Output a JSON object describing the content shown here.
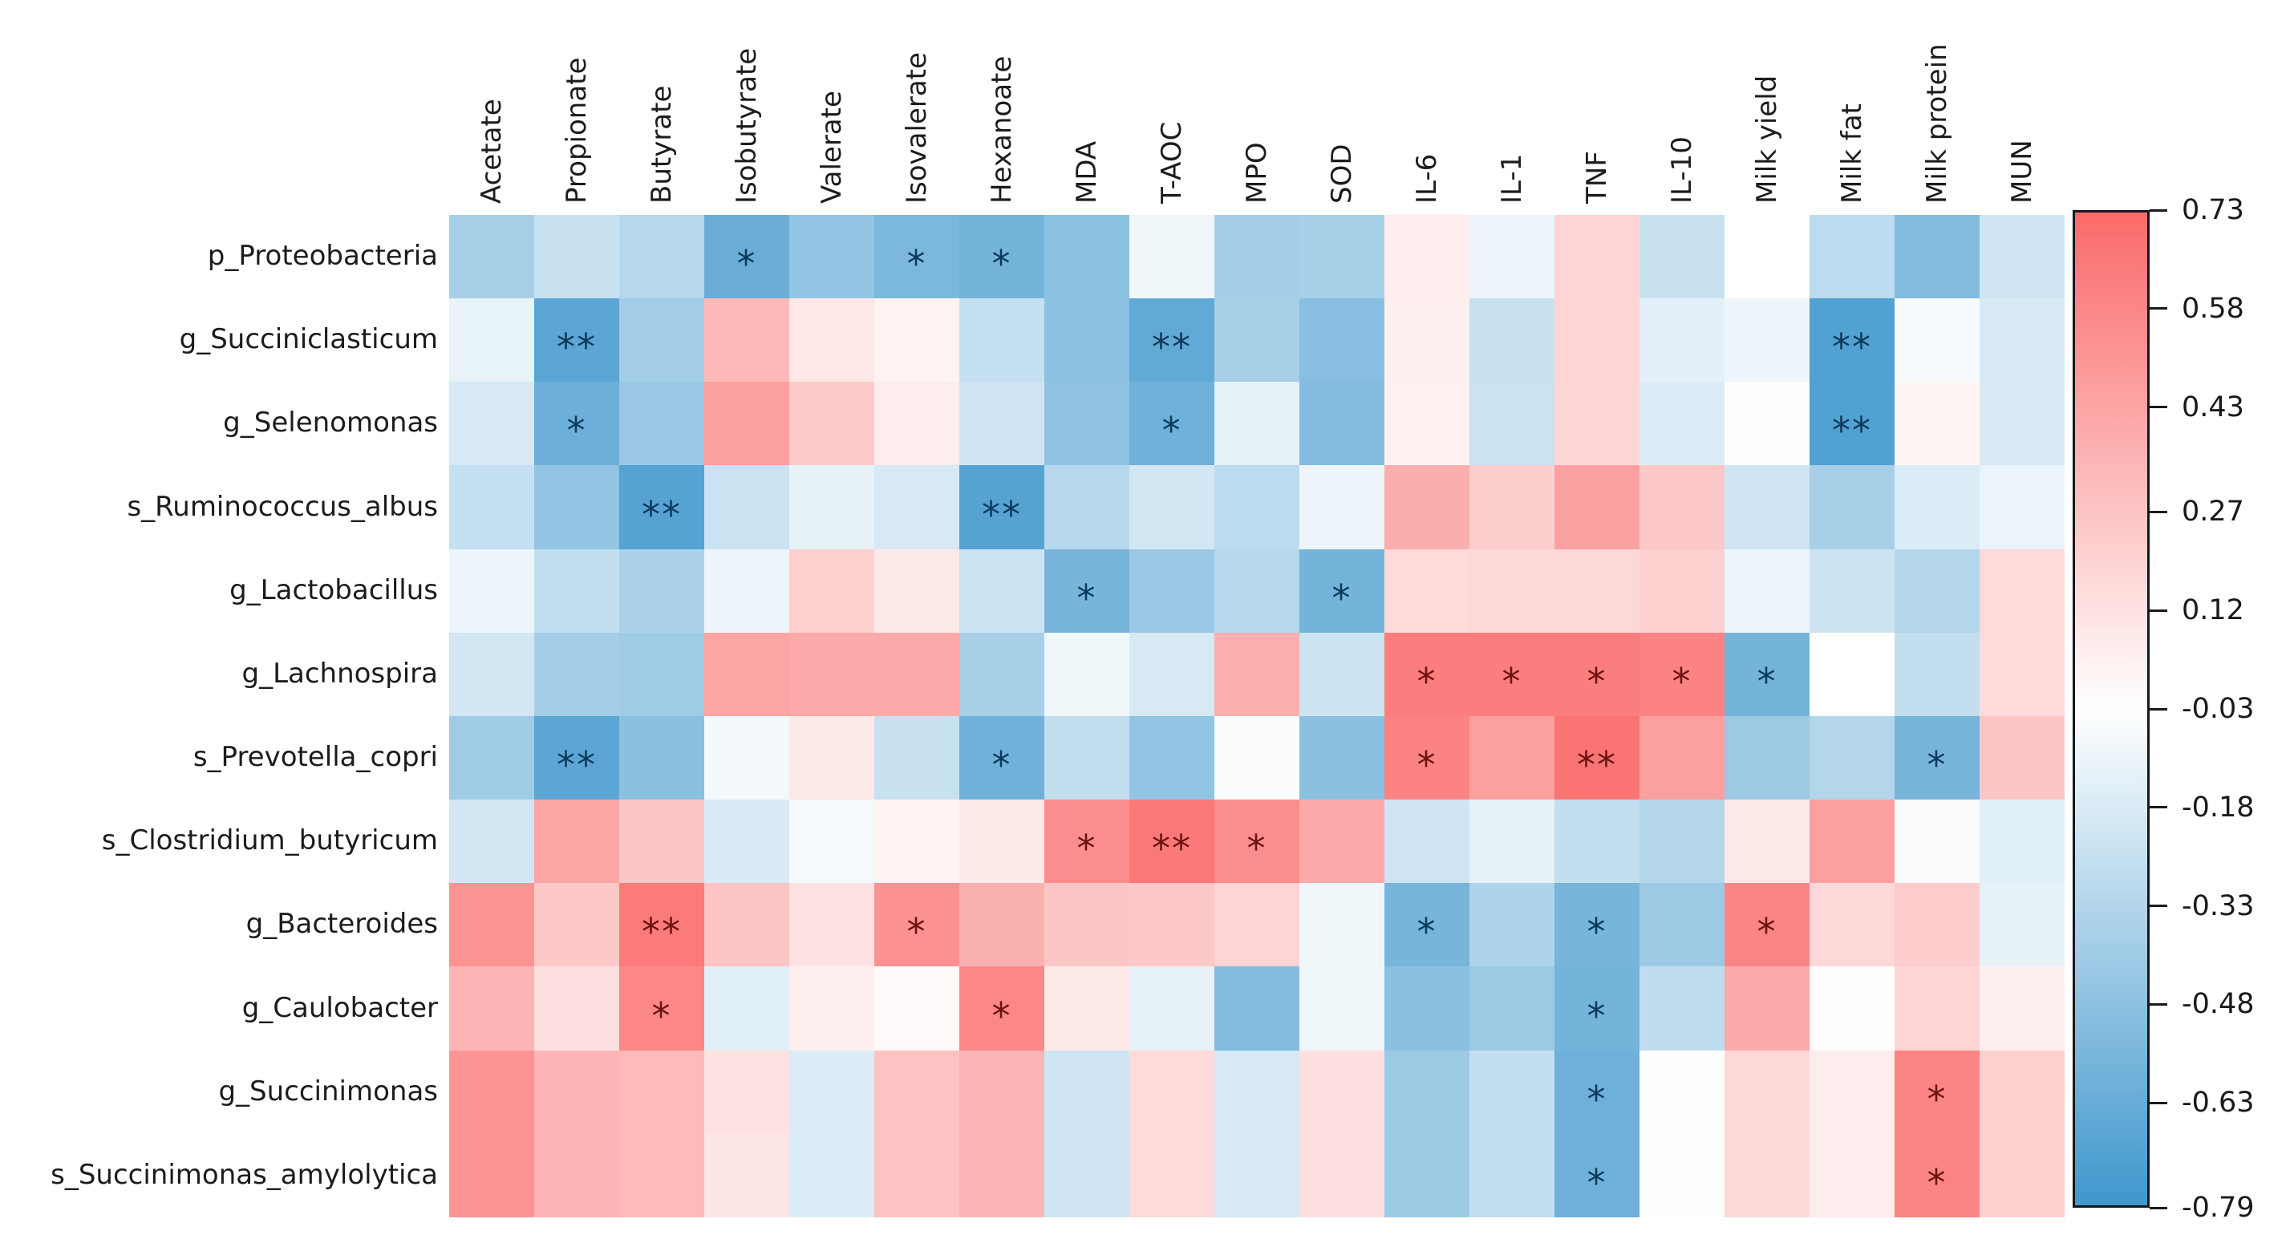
{
  "figure": {
    "background": "#ffffff"
  },
  "chart_data": {
    "type": "heatmap",
    "title": "",
    "xlabel": "",
    "ylabel": "",
    "grid": false,
    "legend_position": "right-colorbar",
    "rows": [
      "p_Proteobacteria",
      "g_Succiniclasticum",
      "g_Selenomonas",
      "s_Ruminococcus_albus",
      "g_Lactobacillus",
      "g_Lachnospira",
      "s_Prevotella_copri",
      "s_Clostridium_butyricum",
      "g_Bacteroides",
      "g_Caulobacter",
      "g_Succinimonas",
      "s_Succinimonas_amylolytica"
    ],
    "columns": [
      "Acetate",
      "Propionate",
      "Butyrate",
      "Isobutyrate",
      "Valerate",
      "Isovalerate",
      "Hexanoate",
      "MDA",
      "T-AOC",
      "MPO",
      "SOD",
      "IL-6",
      "IL-1",
      "TNF",
      "IL-10",
      "Milk yield",
      "Milk fat",
      "Milk protein",
      "MUN"
    ],
    "values": [
      [
        -0.38,
        -0.25,
        -0.32,
        -0.62,
        -0.46,
        -0.55,
        -0.58,
        -0.48,
        -0.09,
        -0.39,
        -0.38,
        0.06,
        -0.1,
        0.19,
        -0.25,
        -0.03,
        -0.29,
        -0.52,
        -0.22
      ],
      [
        -0.12,
        -0.68,
        -0.4,
        0.33,
        0.09,
        0.03,
        -0.26,
        -0.48,
        -0.65,
        -0.38,
        -0.5,
        0.05,
        -0.25,
        0.19,
        -0.14,
        -0.1,
        -0.72,
        -0.06,
        -0.19
      ],
      [
        -0.19,
        -0.61,
        -0.43,
        0.46,
        0.24,
        0.06,
        -0.22,
        -0.47,
        -0.6,
        -0.13,
        -0.52,
        0.04,
        -0.24,
        0.18,
        -0.17,
        -0.02,
        -0.72,
        0.02,
        -0.18
      ],
      [
        -0.26,
        -0.46,
        -0.7,
        -0.24,
        -0.13,
        -0.19,
        -0.7,
        -0.31,
        -0.21,
        -0.29,
        -0.1,
        0.39,
        0.22,
        0.45,
        0.25,
        -0.22,
        -0.38,
        -0.17,
        -0.11
      ],
      [
        -0.1,
        -0.27,
        -0.36,
        -0.1,
        0.21,
        0.08,
        -0.23,
        -0.57,
        -0.43,
        -0.32,
        -0.58,
        0.16,
        0.17,
        0.17,
        0.21,
        -0.1,
        -0.23,
        -0.33,
        0.16
      ],
      [
        -0.21,
        -0.39,
        -0.41,
        0.43,
        0.41,
        0.41,
        -0.38,
        -0.09,
        -0.19,
        0.38,
        -0.23,
        0.63,
        0.63,
        0.63,
        0.6,
        -0.58,
        -0.03,
        -0.27,
        0.16
      ],
      [
        -0.41,
        -0.68,
        -0.49,
        -0.08,
        0.08,
        -0.25,
        -0.6,
        -0.27,
        -0.46,
        -0.05,
        -0.49,
        0.6,
        0.46,
        0.68,
        0.46,
        -0.42,
        -0.33,
        -0.57,
        0.26
      ],
      [
        -0.21,
        0.43,
        0.26,
        -0.18,
        -0.07,
        0.03,
        0.08,
        0.55,
        0.66,
        0.55,
        0.41,
        -0.22,
        -0.13,
        -0.27,
        -0.33,
        0.08,
        0.46,
        -0.05,
        -0.15
      ],
      [
        0.52,
        0.25,
        0.65,
        0.27,
        0.12,
        0.53,
        0.37,
        0.26,
        0.25,
        0.19,
        -0.09,
        -0.57,
        -0.35,
        -0.57,
        -0.42,
        0.59,
        0.17,
        0.23,
        -0.13
      ],
      [
        0.35,
        0.13,
        0.58,
        -0.15,
        0.05,
        0.0,
        0.58,
        0.08,
        -0.13,
        -0.52,
        -0.09,
        -0.49,
        -0.42,
        -0.58,
        -0.28,
        0.41,
        -0.02,
        0.19,
        0.05
      ],
      [
        0.51,
        0.35,
        0.32,
        0.12,
        -0.17,
        0.28,
        0.34,
        -0.22,
        0.16,
        -0.19,
        0.13,
        -0.42,
        -0.27,
        -0.6,
        -0.04,
        0.17,
        0.06,
        0.59,
        0.21
      ],
      [
        0.51,
        0.35,
        0.32,
        0.1,
        -0.17,
        0.28,
        0.34,
        -0.22,
        0.16,
        -0.19,
        0.13,
        -0.42,
        -0.27,
        -0.6,
        -0.04,
        0.17,
        0.06,
        0.59,
        0.21
      ]
    ],
    "significance": [
      [
        "",
        "",
        "",
        "*",
        "",
        "*",
        "*",
        "",
        "",
        "",
        "",
        "",
        "",
        "",
        "",
        "",
        "",
        "",
        ""
      ],
      [
        "",
        "**",
        "",
        "",
        "",
        "",
        "",
        "",
        "**",
        "",
        "",
        "",
        "",
        "",
        "",
        "",
        "**",
        "",
        ""
      ],
      [
        "",
        "*",
        "",
        "",
        "",
        "",
        "",
        "",
        "*",
        "",
        "",
        "",
        "",
        "",
        "",
        "",
        "**",
        "",
        ""
      ],
      [
        "",
        "",
        "**",
        "",
        "",
        "",
        "**",
        "",
        "",
        "",
        "",
        "",
        "",
        "",
        "",
        "",
        "",
        "",
        ""
      ],
      [
        "",
        "",
        "",
        "",
        "",
        "",
        "",
        "*",
        "",
        "",
        "*",
        "",
        "",
        "",
        "",
        "",
        "",
        "",
        ""
      ],
      [
        "",
        "",
        "",
        "",
        "",
        "",
        "",
        "",
        "",
        "",
        "",
        "*",
        "*",
        "*",
        "*",
        "*",
        "",
        "",
        ""
      ],
      [
        "",
        "**",
        "",
        "",
        "",
        "",
        "*",
        "",
        "",
        "",
        "",
        "*",
        "",
        "**",
        "",
        "",
        "",
        "*",
        ""
      ],
      [
        "",
        "",
        "",
        "",
        "",
        "",
        "",
        "*",
        "**",
        "*",
        "",
        "",
        "",
        "",
        "",
        "",
        "",
        "",
        ""
      ],
      [
        "",
        "",
        "**",
        "",
        "",
        "*",
        "",
        "",
        "",
        "",
        "",
        "*",
        "",
        "*",
        "",
        "*",
        "",
        "",
        ""
      ],
      [
        "",
        "",
        "*",
        "",
        "",
        "",
        "*",
        "",
        "",
        "",
        "",
        "",
        "",
        "*",
        "",
        "",
        "",
        "",
        ""
      ],
      [
        "",
        "",
        "",
        "",
        "",
        "",
        "",
        "",
        "",
        "",
        "",
        "",
        "",
        "*",
        "",
        "",
        "",
        "*",
        ""
      ],
      [
        "",
        "",
        "",
        "",
        "",
        "",
        "",
        "",
        "",
        "",
        "",
        "",
        "",
        "*",
        "",
        "",
        "",
        "*",
        ""
      ]
    ],
    "colorbar": {
      "tick_labels": [
        "0.73",
        "0.58",
        "0.43",
        "0.27",
        "0.12",
        "-0.03",
        "-0.18",
        "-0.33",
        "-0.48",
        "-0.63",
        "-0.79"
      ],
      "vmax": 0.73,
      "vmid": -0.03,
      "vmin": -0.79,
      "color_max": "#fa6a6a",
      "color_mid": "#ffffff",
      "color_min": "#3f97cd",
      "frame_color": "#16181d",
      "tick_color": "#1a1a1a"
    },
    "annotation_colors": {
      "negative": "#0d3a5c",
      "positive": "#6b1411"
    },
    "label_color": "#1c1c1c"
  }
}
